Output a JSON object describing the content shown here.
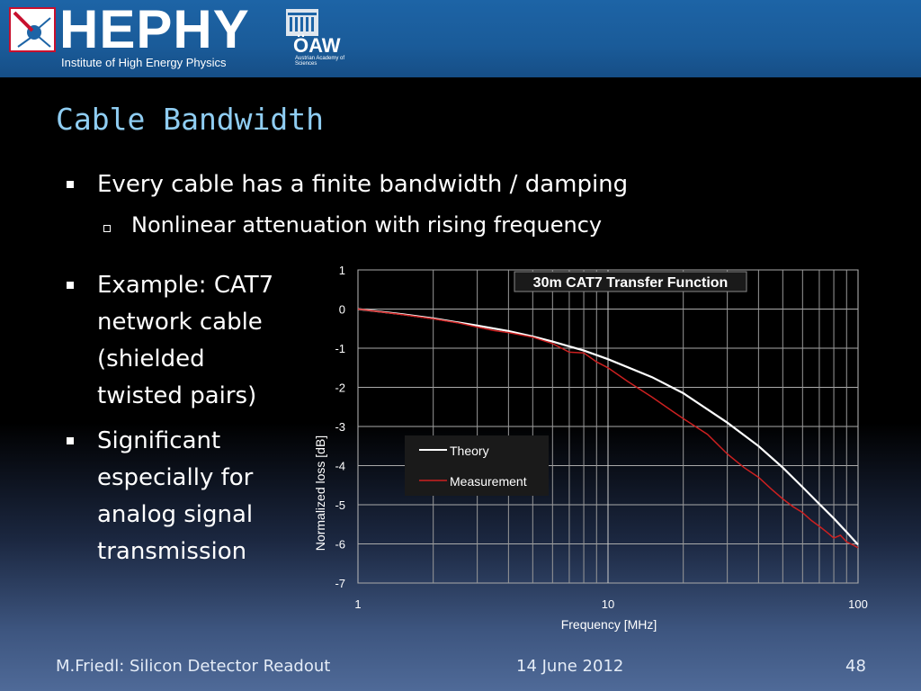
{
  "header": {
    "logo_text": "HEPHY",
    "logo_subtitle": "Institute of High Energy Physics",
    "oaw_text": "ÖAW",
    "oaw_subtitle": "Austrian Academy of Sciences"
  },
  "slide": {
    "title": "Cable Bandwidth",
    "bullets": [
      "Every cable has a finite bandwidth / damping",
      "Nonlinear attenuation with rising frequency",
      [
        "Example: CAT7",
        "network cable",
        "(shielded",
        "twisted pairs)"
      ],
      [
        "Significant",
        "especially for",
        "analog signal",
        "transmission"
      ]
    ]
  },
  "footer": {
    "author": "M.Friedl: Silicon Detector Readout",
    "date": "14 June 2012",
    "page": "48"
  },
  "chart_data": {
    "type": "line",
    "title": "30m CAT7 Transfer Function",
    "xlabel": "Frequency [MHz]",
    "ylabel": "Normalized loss [dB]",
    "xscale": "log",
    "xlim": [
      1,
      100
    ],
    "ylim": [
      -7,
      1
    ],
    "x_tick_labels": [
      "1",
      "10",
      "100"
    ],
    "y_tick_labels": [
      "1",
      "0",
      "-1",
      "-2",
      "-3",
      "-4",
      "-5",
      "-6",
      "-7"
    ],
    "grid": true,
    "legend_position": "center",
    "colors": {
      "Theory": "#ffffff",
      "Measurement": "#cc2020"
    },
    "series": [
      {
        "name": "Theory",
        "x": [
          1,
          1.5,
          2,
          3,
          4,
          5,
          6,
          8,
          10,
          15,
          20,
          30,
          40,
          50,
          60,
          70,
          80,
          90,
          100
        ],
        "y": [
          0,
          -0.13,
          -0.24,
          -0.42,
          -0.56,
          -0.7,
          -0.83,
          -1.06,
          -1.28,
          -1.74,
          -2.15,
          -2.9,
          -3.5,
          -4.05,
          -4.55,
          -4.98,
          -5.35,
          -5.7,
          -6.02
        ]
      },
      {
        "name": "Measurement",
        "x": [
          1,
          1.5,
          2,
          2.5,
          3,
          3.5,
          4,
          5,
          6,
          7,
          8,
          9,
          10,
          12,
          15,
          18,
          20,
          25,
          30,
          35,
          40,
          45,
          50,
          55,
          60,
          65,
          70,
          75,
          80,
          85,
          90,
          95,
          100
        ],
        "y": [
          0,
          -0.14,
          -0.25,
          -0.35,
          -0.46,
          -0.55,
          -0.6,
          -0.72,
          -0.88,
          -1.1,
          -1.12,
          -1.35,
          -1.5,
          -1.85,
          -2.25,
          -2.6,
          -2.8,
          -3.2,
          -3.7,
          -4.05,
          -4.3,
          -4.6,
          -4.85,
          -5.05,
          -5.2,
          -5.4,
          -5.55,
          -5.7,
          -5.85,
          -5.78,
          -5.95,
          -6.02,
          -6.1
        ]
      }
    ]
  }
}
